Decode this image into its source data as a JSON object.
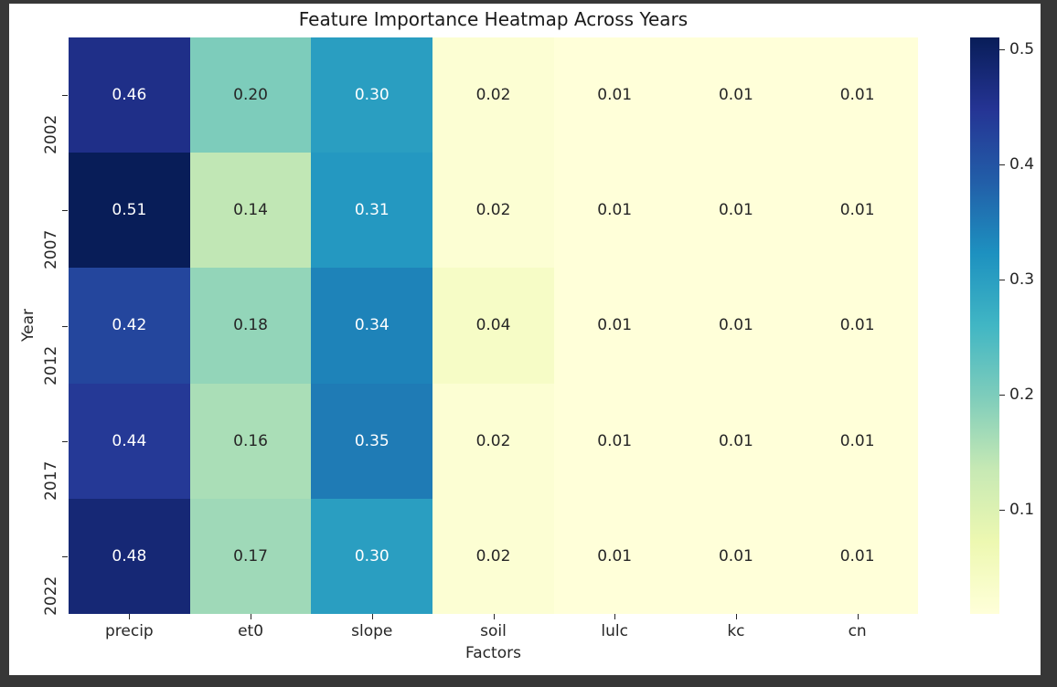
{
  "window": {
    "frame_color": "#373737",
    "figure_background": "#ffffff",
    "text_color": "#262626"
  },
  "chart_data": {
    "type": "heatmap",
    "title": "Feature Importance Heatmap Across Years",
    "xlabel": "Factors",
    "ylabel": "Year",
    "x_categories": [
      "precip",
      "et0",
      "slope",
      "soil",
      "lulc",
      "kc",
      "cn"
    ],
    "y_categories": [
      "2002",
      "2007",
      "2012",
      "2017",
      "2022"
    ],
    "values": [
      [
        0.46,
        0.2,
        0.3,
        0.02,
        0.01,
        0.01,
        0.01
      ],
      [
        0.51,
        0.14,
        0.31,
        0.02,
        0.01,
        0.01,
        0.01
      ],
      [
        0.42,
        0.18,
        0.34,
        0.04,
        0.01,
        0.01,
        0.01
      ],
      [
        0.44,
        0.16,
        0.35,
        0.02,
        0.01,
        0.01,
        0.01
      ],
      [
        0.48,
        0.17,
        0.3,
        0.02,
        0.01,
        0.01,
        0.01
      ]
    ],
    "annot_decimals": 2,
    "vmin": 0.01,
    "vmax": 0.51,
    "grid": false,
    "legend_position": "colorbar-right",
    "colormap": {
      "name": "YlGnBu",
      "stops": [
        [
          0.0,
          "#ffffd9"
        ],
        [
          0.125,
          "#edf8b1"
        ],
        [
          0.25,
          "#c7e9b4"
        ],
        [
          0.375,
          "#7fcdbb"
        ],
        [
          0.5,
          "#41b6c4"
        ],
        [
          0.625,
          "#1d91c0"
        ],
        [
          0.75,
          "#225ea8"
        ],
        [
          0.875,
          "#253494"
        ],
        [
          1.0,
          "#081d58"
        ]
      ]
    },
    "annot_text_light": "#ffffff",
    "annot_text_dark": "#262626",
    "colorbar_ticks": [
      {
        "value": 0.5,
        "label": "0.5"
      },
      {
        "value": 0.4,
        "label": "0.4"
      },
      {
        "value": 0.3,
        "label": "0.3"
      },
      {
        "value": 0.2,
        "label": "0.2"
      },
      {
        "value": 0.1,
        "label": "0.1"
      }
    ]
  }
}
